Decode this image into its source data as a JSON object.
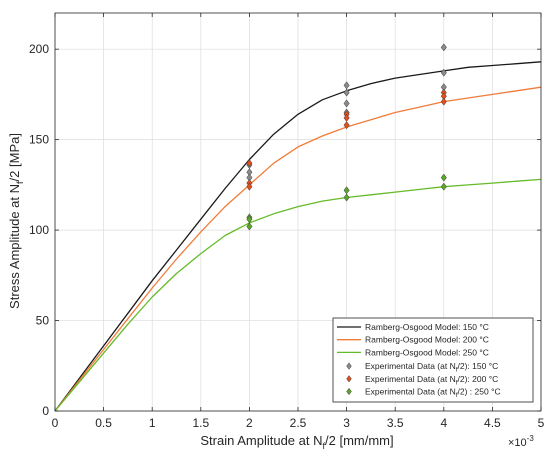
{
  "chart_data": {
    "type": "line",
    "xlabel_main": "Strain Amplitude at N",
    "xlabel_sub": "f",
    "xlabel_tail": "/2  [mm/mm]",
    "ylabel_main": "Stress Amplitude at N",
    "ylabel_sub": "f",
    "ylabel_tail": "/2  [MPa]",
    "x_multiplier_base": "×10",
    "x_multiplier_exp": "-3",
    "xlim": [
      0,
      5
    ],
    "ylim": [
      0,
      220
    ],
    "x_ticks": [
      "0",
      "0.5",
      "1",
      "1.5",
      "2",
      "2.5",
      "3",
      "3.5",
      "4",
      "4.5",
      "5"
    ],
    "y_ticks": [
      "0",
      "50",
      "100",
      "150",
      "200"
    ],
    "grid": true,
    "legend_position": "bottom-right",
    "model_series": [
      {
        "name": "Ramberg-Osgood Model: 150 °C",
        "color": "#1a1a1a",
        "x": [
          0,
          0.25,
          0.5,
          0.75,
          1.0,
          1.25,
          1.5,
          1.75,
          2.0,
          2.25,
          2.5,
          2.75,
          3.0,
          3.25,
          3.5,
          3.75,
          4.0,
          4.25,
          4.5,
          4.75,
          5.0
        ],
        "y": [
          0,
          18,
          36,
          54,
          72,
          89,
          106,
          123,
          139,
          153,
          164,
          172,
          177,
          181,
          184,
          186,
          188,
          190,
          191,
          192,
          193
        ]
      },
      {
        "name": "Ramberg-Osgood Model: 200 °C",
        "color": "#f07c3a",
        "x": [
          0,
          0.25,
          0.5,
          0.75,
          1.0,
          1.25,
          1.5,
          1.75,
          2.0,
          2.25,
          2.5,
          2.75,
          3.0,
          3.25,
          3.5,
          3.75,
          4.0,
          4.25,
          4.5,
          4.75,
          5.0
        ],
        "y": [
          0,
          17,
          34,
          51,
          68,
          84,
          99,
          113,
          125,
          137,
          146,
          152,
          157,
          161,
          165,
          168,
          171,
          173,
          175,
          177,
          179
        ]
      },
      {
        "name": "Ramberg-Osgood Model: 250 °C",
        "color": "#66bb2a",
        "x": [
          0,
          0.25,
          0.5,
          0.75,
          1.0,
          1.25,
          1.5,
          1.75,
          2.0,
          2.25,
          2.5,
          2.75,
          3.0,
          3.25,
          3.5,
          3.75,
          4.0,
          4.25,
          4.5,
          4.75,
          5.0
        ],
        "y": [
          0,
          16,
          32,
          48,
          63,
          76,
          87,
          97,
          104,
          109,
          113,
          116,
          118,
          119.5,
          121,
          122.5,
          124,
          125,
          126,
          127,
          128
        ]
      }
    ],
    "experimental_series": [
      {
        "name_pre": "Experimental Data (at N",
        "name_sub": "f",
        "name_post": "/2): 150 °C",
        "color": "#8a8a8a",
        "x": [
          2,
          2,
          2,
          3,
          3,
          3,
          3,
          4,
          4,
          4
        ],
        "y": [
          132,
          129,
          136,
          180,
          176,
          170,
          165,
          201,
          187,
          179
        ]
      },
      {
        "name_pre": "Experimental Data (at N",
        "name_sub": "f",
        "name_post": "/2): 200 °C",
        "color": "#e0501e",
        "x": [
          2,
          2,
          2,
          3,
          3,
          3,
          4,
          4,
          4
        ],
        "y": [
          137,
          126,
          124,
          164,
          162,
          158,
          176,
          174,
          171
        ]
      },
      {
        "name_pre": "Experimental Data (at N",
        "name_sub": "f",
        "name_post": "/2) : 250 °C",
        "color": "#5aa52a",
        "x": [
          2,
          2,
          2,
          3,
          3,
          4,
          4
        ],
        "y": [
          107,
          106,
          102,
          122,
          118,
          129,
          124
        ]
      }
    ]
  }
}
